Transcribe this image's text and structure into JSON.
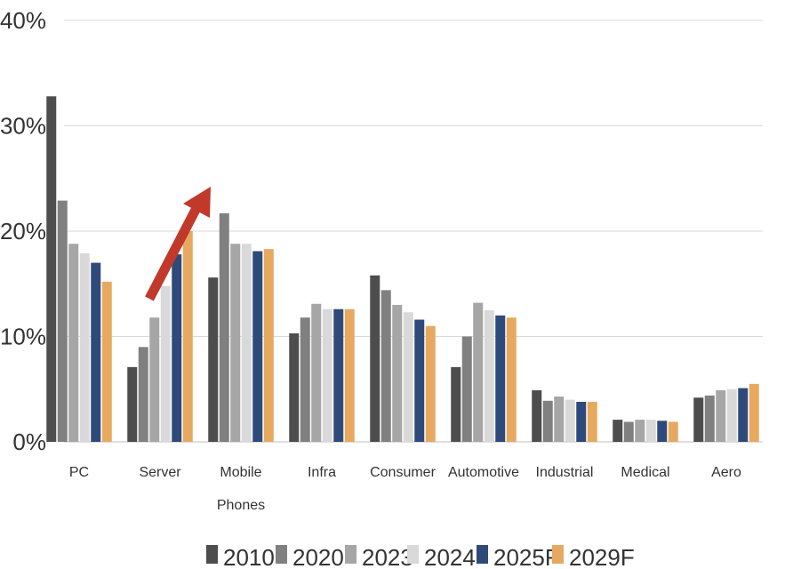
{
  "chart_data": {
    "type": "bar",
    "categories": [
      [
        "PC"
      ],
      [
        "Server"
      ],
      [
        "Mobile",
        "Phones"
      ],
      [
        "Infra"
      ],
      [
        "Consumer"
      ],
      [
        "Automotive"
      ],
      [
        "Industrial"
      ],
      [
        "Medical"
      ],
      [
        "Aero"
      ]
    ],
    "series": [
      {
        "name": "2010",
        "color": "#4d4d4d",
        "values": [
          32.8,
          7.1,
          15.6,
          10.3,
          15.8,
          7.1,
          4.9,
          2.1,
          4.2
        ]
      },
      {
        "name": "2020",
        "color": "#808080",
        "values": [
          22.9,
          9.0,
          21.7,
          11.8,
          14.4,
          10.0,
          3.9,
          1.9,
          4.4
        ]
      },
      {
        "name": "2023",
        "color": "#a6a6a6",
        "values": [
          18.8,
          11.8,
          18.8,
          13.1,
          13.0,
          13.2,
          4.3,
          2.1,
          4.9
        ]
      },
      {
        "name": "2024",
        "color": "#d9d9d9",
        "values": [
          17.9,
          14.8,
          18.8,
          12.6,
          12.3,
          12.5,
          4.0,
          2.1,
          5.0
        ]
      },
      {
        "name": "2025F",
        "color": "#2e4a7a",
        "values": [
          17.0,
          17.8,
          18.1,
          12.6,
          11.6,
          12.0,
          3.8,
          2.0,
          5.1
        ]
      },
      {
        "name": "2029F",
        "color": "#e6a95f",
        "values": [
          15.2,
          20.0,
          18.3,
          12.6,
          11.0,
          11.8,
          3.8,
          1.9,
          5.5
        ]
      }
    ],
    "yticks": [
      "0%",
      "10%",
      "20%",
      "30%",
      "40%"
    ],
    "ylim": [
      0,
      40
    ],
    "grid": true,
    "legend": "bottom",
    "annotation": {
      "type": "arrow",
      "color": "#c0392b",
      "category": "Server"
    }
  }
}
